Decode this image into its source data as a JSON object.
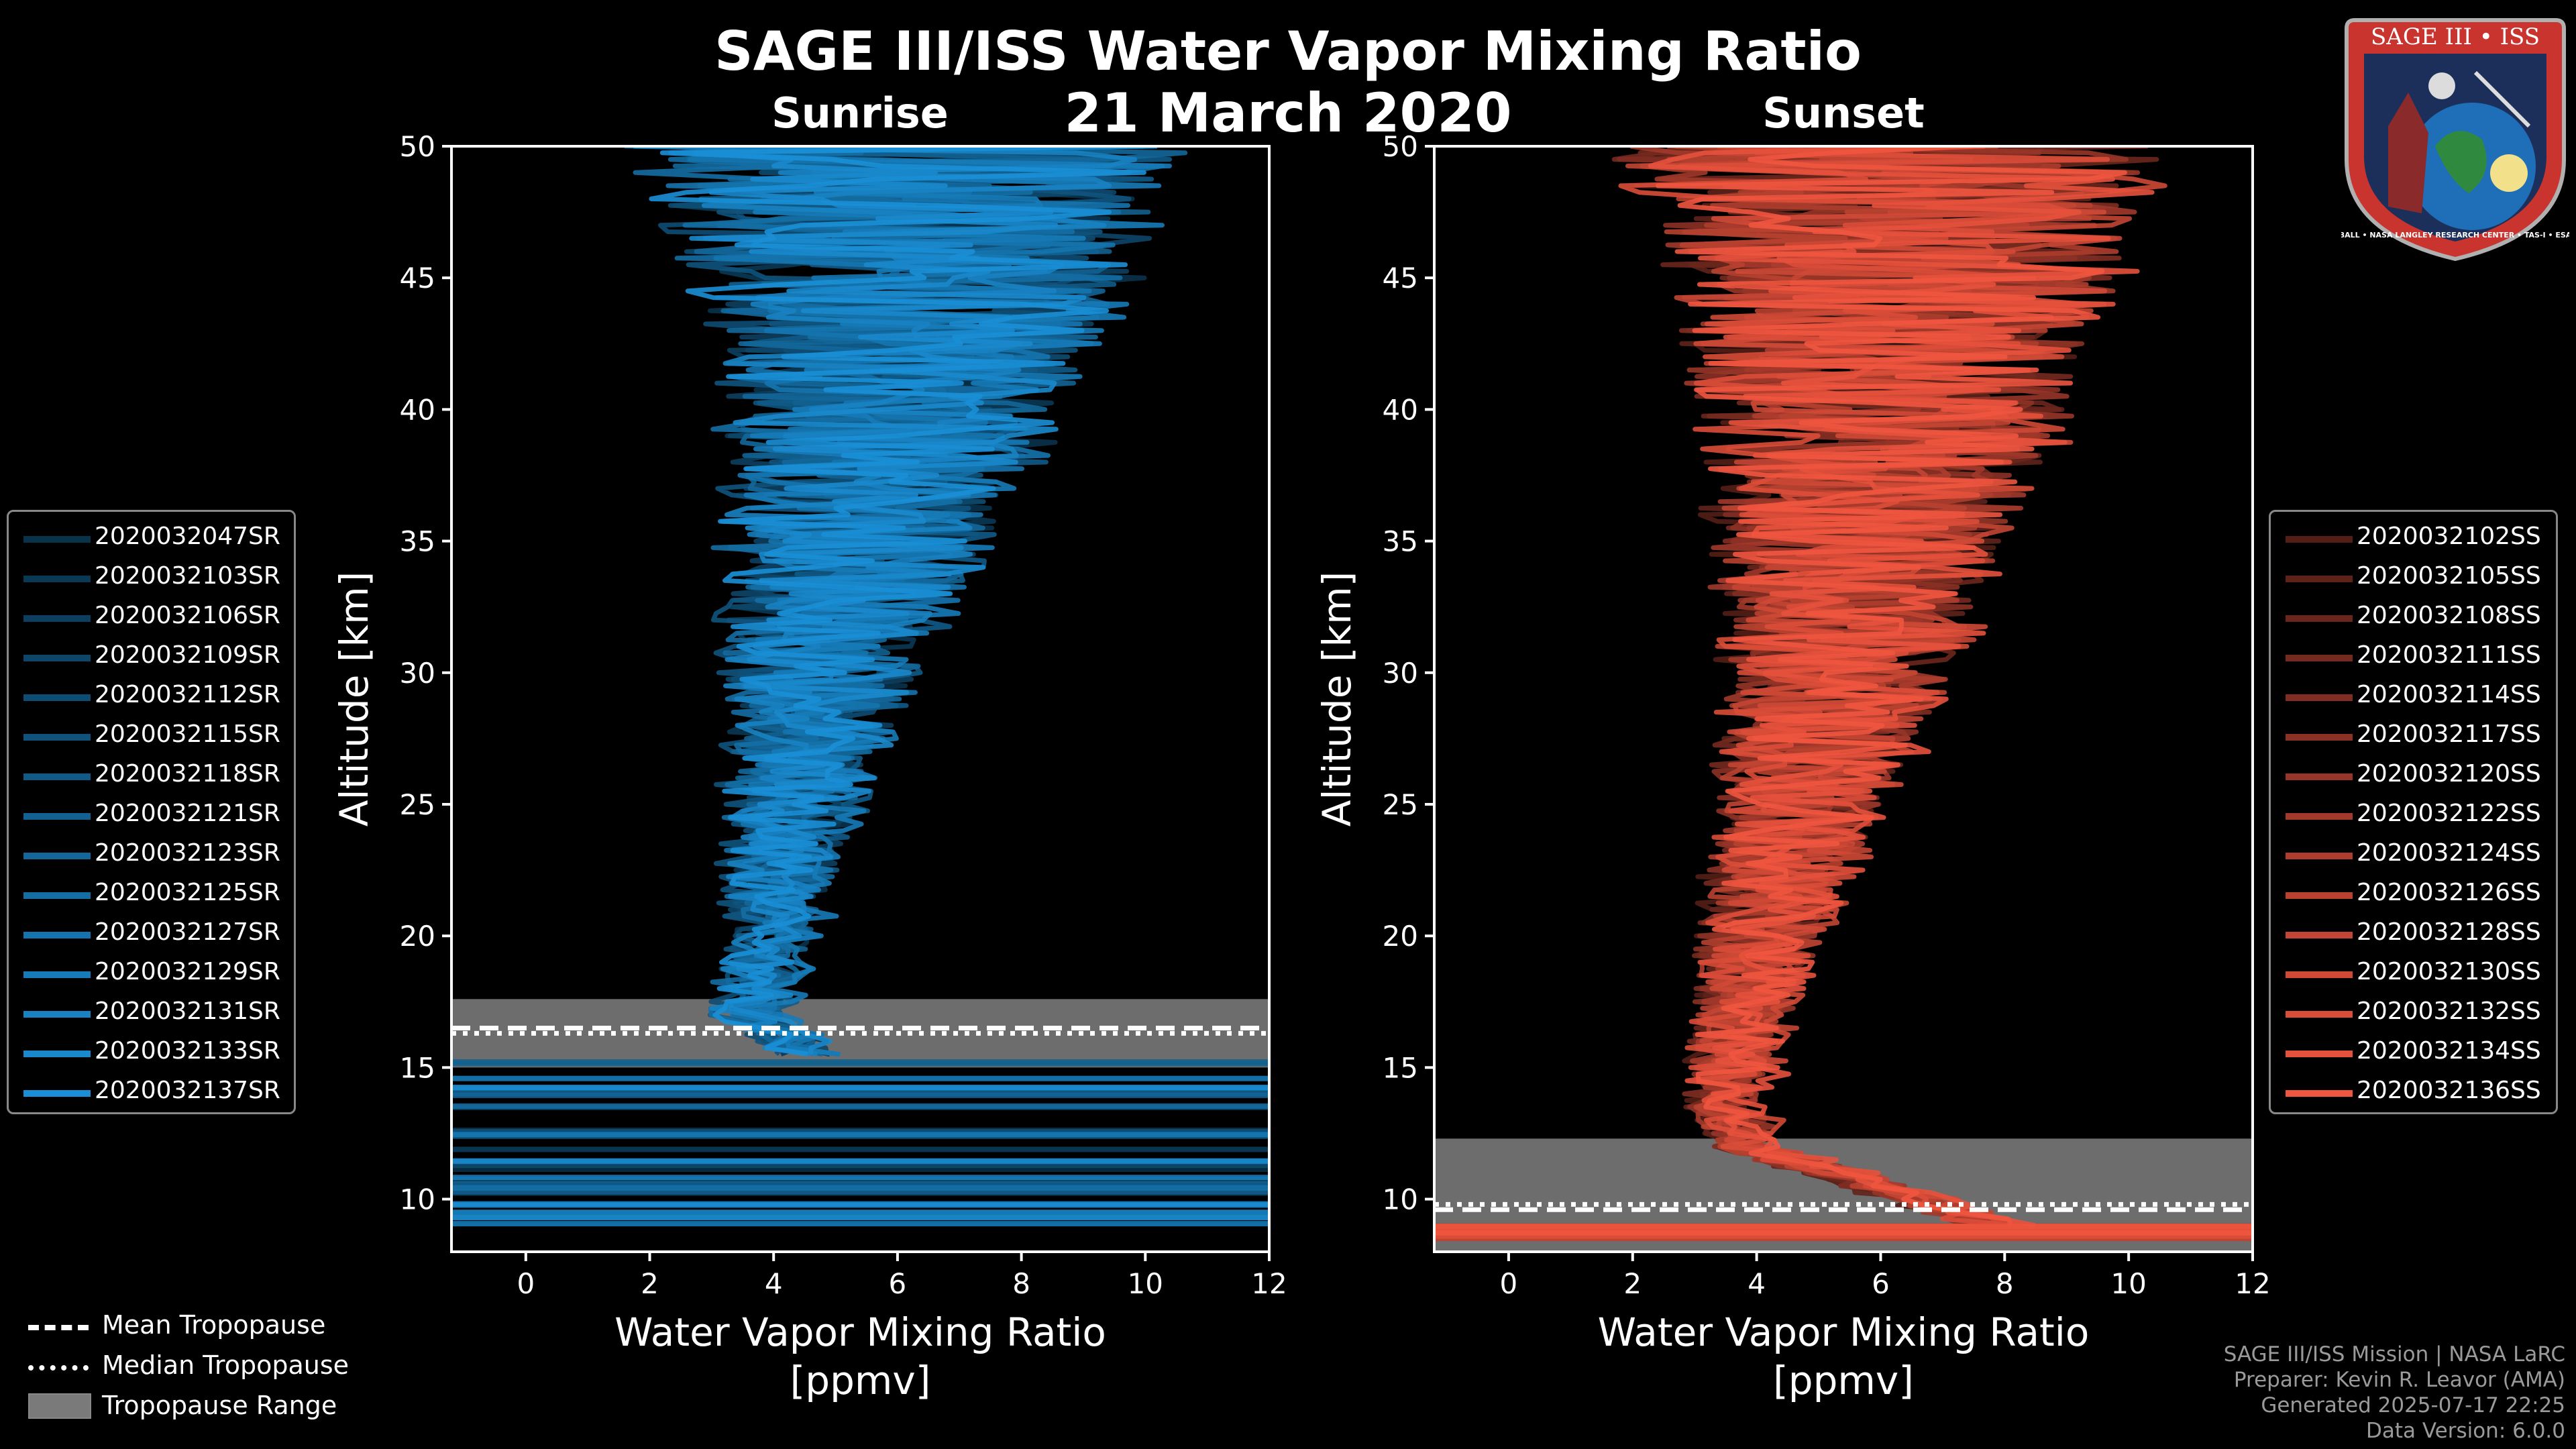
{
  "titles": {
    "main": "SAGE III/ISS Water Vapor Mixing Ratio",
    "date": "21 March 2020",
    "left_panel": "Sunrise",
    "right_panel": "Sunset"
  },
  "legend_sunrise": [
    "2020032047SR",
    "2020032103SR",
    "2020032106SR",
    "2020032109SR",
    "2020032112SR",
    "2020032115SR",
    "2020032118SR",
    "2020032121SR",
    "2020032123SR",
    "2020032125SR",
    "2020032127SR",
    "2020032129SR",
    "2020032131SR",
    "2020032133SR",
    "2020032137SR"
  ],
  "legend_sunset": [
    "2020032102SS",
    "2020032105SS",
    "2020032108SS",
    "2020032111SS",
    "2020032114SS",
    "2020032117SS",
    "2020032120SS",
    "2020032122SS",
    "2020032124SS",
    "2020032126SS",
    "2020032128SS",
    "2020032130SS",
    "2020032132SS",
    "2020032134SS",
    "2020032136SS"
  ],
  "tropopause_legend": {
    "mean": "Mean Tropopause",
    "median": "Median Tropopause",
    "range": "Tropopause Range"
  },
  "credits": {
    "line1": "SAGE III/ISS Mission | NASA LaRC",
    "line2": "Preparer: Kevin R. Leavor (AMA)",
    "line3": "Generated 2025-07-17 22:25",
    "line4": "Data Version: 6.0.0"
  },
  "logo": {
    "text_top": "SAGE III • ISS",
    "text_bottom": "BALL • NASA LANGLEY RESEARCH CENTER • TAS-I • ESA"
  },
  "colors": {
    "sunrise": "#1a8fd6",
    "sunset": "#f0553f",
    "tropo_range": "#808080"
  },
  "chart_data": [
    {
      "type": "line",
      "panel": "Sunrise",
      "title": "Sunrise",
      "xlabel": "Water Vapor Mixing Ratio\n[ppmv]",
      "ylabel": "Altitude [km]",
      "xlim": [
        -1.2,
        12
      ],
      "ylim": [
        8,
        50
      ],
      "xticks": [
        0,
        2,
        4,
        6,
        8,
        10,
        12
      ],
      "yticks": [
        10,
        15,
        20,
        25,
        30,
        35,
        40,
        45,
        50
      ],
      "profile_median": [
        {
          "alt": 15.5,
          "ppmv": 4.6
        },
        {
          "alt": 17,
          "ppmv": 3.6
        },
        {
          "alt": 20,
          "ppmv": 4.0
        },
        {
          "alt": 25,
          "ppmv": 4.3
        },
        {
          "alt": 30,
          "ppmv": 4.8
        },
        {
          "alt": 35,
          "ppmv": 5.4
        },
        {
          "alt": 40,
          "ppmv": 6.0
        },
        {
          "alt": 45,
          "ppmv": 6.3
        },
        {
          "alt": 50,
          "ppmv": 6.2
        }
      ],
      "spread": {
        "low": 0.5,
        "high": 4.5
      },
      "tropopause": {
        "mean": 16.5,
        "median": 16.3,
        "range": [
          15.0,
          17.6
        ]
      },
      "series_count": 15
    },
    {
      "type": "line",
      "panel": "Sunset",
      "title": "Sunset",
      "xlabel": "Water Vapor Mixing Ratio\n[ppmv]",
      "ylabel": "Altitude [km]",
      "xlim": [
        -1.2,
        12
      ],
      "ylim": [
        8,
        50
      ],
      "xticks": [
        0,
        2,
        4,
        6,
        8,
        10,
        12
      ],
      "yticks": [
        10,
        15,
        20,
        25,
        30,
        35,
        40,
        45,
        50
      ],
      "profile_median": [
        {
          "alt": 9,
          "ppmv": 8.0
        },
        {
          "alt": 12,
          "ppmv": 4.0
        },
        {
          "alt": 14,
          "ppmv": 3.6
        },
        {
          "alt": 17,
          "ppmv": 3.9
        },
        {
          "alt": 20,
          "ppmv": 4.2
        },
        {
          "alt": 25,
          "ppmv": 4.8
        },
        {
          "alt": 30,
          "ppmv": 5.4
        },
        {
          "alt": 35,
          "ppmv": 5.8
        },
        {
          "alt": 40,
          "ppmv": 6.2
        },
        {
          "alt": 45,
          "ppmv": 6.3
        },
        {
          "alt": 50,
          "ppmv": 6.2
        }
      ],
      "spread": {
        "low": 0.5,
        "high": 4.5
      },
      "tropopause": {
        "mean": 9.6,
        "median": 9.8,
        "range": [
          8.0,
          12.3
        ]
      },
      "series_count": 15
    }
  ]
}
